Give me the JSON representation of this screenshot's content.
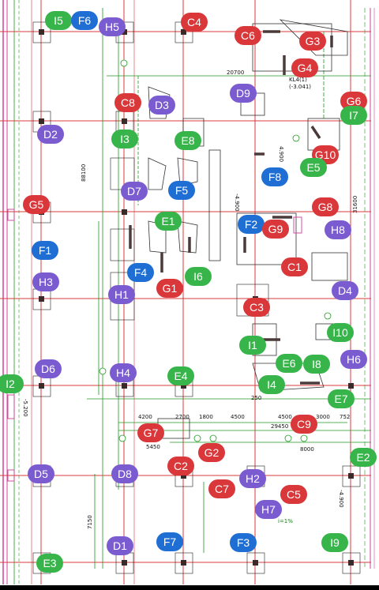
{
  "drawing": {
    "dims": {
      "d20700": "20700",
      "d88100": "88100",
      "d31600": "31600",
      "d4200": "4200",
      "d2700": "2700",
      "d1800": "1800",
      "d4500a": "4500",
      "d4500b": "4500",
      "d3000": "3000",
      "d752": "752",
      "d29450": "29450",
      "d5450": "5450",
      "d8000": "8000",
      "d7150": "7150",
      "d250": "250",
      "d4900a": "4.900",
      "d4900b": "-4.900",
      "d4900c": "-4.900",
      "d5200": "-5.200",
      "kl": "KL4(1)",
      "kl2": "(-3.041)",
      "slope": "i=1%"
    },
    "label_colors": {
      "red": "#d9373a",
      "green": "#38b54a",
      "blue": "#1f6ed4",
      "purple": "#7a5bd0"
    }
  },
  "labels": [
    {
      "id": "I5",
      "color": "green"
    },
    {
      "id": "F6",
      "color": "blue"
    },
    {
      "id": "H5",
      "color": "purple"
    },
    {
      "id": "C4",
      "color": "red"
    },
    {
      "id": "C6",
      "color": "red"
    },
    {
      "id": "G3",
      "color": "red"
    },
    {
      "id": "G4",
      "color": "red"
    },
    {
      "id": "C8",
      "color": "red"
    },
    {
      "id": "D3",
      "color": "purple"
    },
    {
      "id": "D9",
      "color": "purple"
    },
    {
      "id": "G6",
      "color": "red"
    },
    {
      "id": "I7",
      "color": "green"
    },
    {
      "id": "D2",
      "color": "purple"
    },
    {
      "id": "I3",
      "color": "green"
    },
    {
      "id": "E8",
      "color": "green"
    },
    {
      "id": "G10",
      "color": "red"
    },
    {
      "id": "E5",
      "color": "green"
    },
    {
      "id": "F8",
      "color": "blue"
    },
    {
      "id": "D7",
      "color": "purple"
    },
    {
      "id": "F5",
      "color": "blue"
    },
    {
      "id": "G5",
      "color": "red"
    },
    {
      "id": "G8",
      "color": "red"
    },
    {
      "id": "E1",
      "color": "green"
    },
    {
      "id": "F2",
      "color": "blue"
    },
    {
      "id": "G9",
      "color": "red"
    },
    {
      "id": "H8",
      "color": "purple"
    },
    {
      "id": "F1",
      "color": "blue"
    },
    {
      "id": "C1",
      "color": "red"
    },
    {
      "id": "F4",
      "color": "blue"
    },
    {
      "id": "I6",
      "color": "green"
    },
    {
      "id": "H3",
      "color": "purple"
    },
    {
      "id": "G1",
      "color": "red"
    },
    {
      "id": "H1",
      "color": "purple"
    },
    {
      "id": "D4",
      "color": "purple"
    },
    {
      "id": "C3",
      "color": "red"
    },
    {
      "id": "I10",
      "color": "green"
    },
    {
      "id": "I1",
      "color": "green"
    },
    {
      "id": "E6",
      "color": "green"
    },
    {
      "id": "I8",
      "color": "green"
    },
    {
      "id": "H6",
      "color": "purple"
    },
    {
      "id": "D6",
      "color": "purple"
    },
    {
      "id": "H4",
      "color": "purple"
    },
    {
      "id": "E4",
      "color": "green"
    },
    {
      "id": "I4",
      "color": "green"
    },
    {
      "id": "I2",
      "color": "green"
    },
    {
      "id": "E7",
      "color": "green"
    },
    {
      "id": "C9",
      "color": "red"
    },
    {
      "id": "G7",
      "color": "red"
    },
    {
      "id": "G2",
      "color": "red"
    },
    {
      "id": "E2",
      "color": "green"
    },
    {
      "id": "D5",
      "color": "purple"
    },
    {
      "id": "D8",
      "color": "purple"
    },
    {
      "id": "C2",
      "color": "red"
    },
    {
      "id": "C7",
      "color": "red"
    },
    {
      "id": "H2",
      "color": "purple"
    },
    {
      "id": "C5",
      "color": "red"
    },
    {
      "id": "H7",
      "color": "purple"
    },
    {
      "id": "D1",
      "color": "purple"
    },
    {
      "id": "F7",
      "color": "blue"
    },
    {
      "id": "F3",
      "color": "blue"
    },
    {
      "id": "I9",
      "color": "green"
    },
    {
      "id": "E3",
      "color": "green"
    }
  ]
}
